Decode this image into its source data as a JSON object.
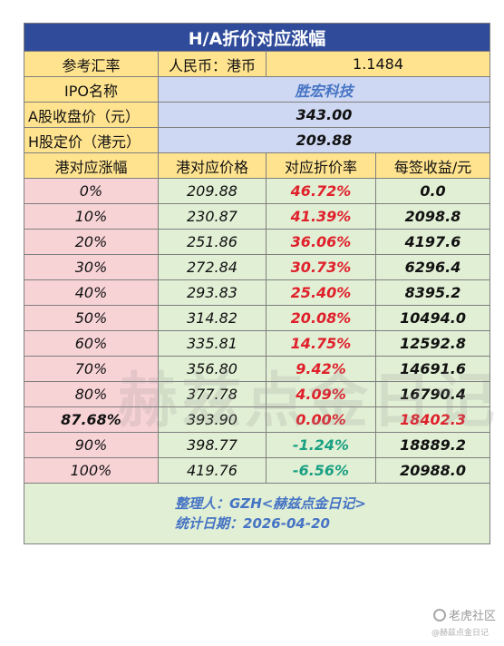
{
  "title": "H/A折价对应涨幅",
  "info": {
    "fx_label": "参考汇率",
    "fx_pair": "人民币：港币",
    "fx_value": "1.1484",
    "ipo_label": "IPO名称",
    "ipo_name": "胜宏科技",
    "a_close_label": "A股收盘价（元）",
    "a_close": "343.00",
    "h_price_label": "H股定价（港元）",
    "h_price": "209.88"
  },
  "headers": [
    "港对应涨幅",
    "港对应价格",
    "对应折价率",
    "每签收益/元"
  ],
  "rows": [
    {
      "rise": "0%",
      "price": "209.88",
      "discount": "46.72%",
      "profit": "0.0"
    },
    {
      "rise": "10%",
      "price": "230.87",
      "discount": "41.39%",
      "profit": "2098.8"
    },
    {
      "rise": "20%",
      "price": "251.86",
      "discount": "36.06%",
      "profit": "4197.6"
    },
    {
      "rise": "30%",
      "price": "272.84",
      "discount": "30.73%",
      "profit": "6296.4"
    },
    {
      "rise": "40%",
      "price": "293.83",
      "discount": "25.40%",
      "profit": "8395.2"
    },
    {
      "rise": "50%",
      "price": "314.82",
      "discount": "20.08%",
      "profit": "10494.0"
    },
    {
      "rise": "60%",
      "price": "335.81",
      "discount": "14.75%",
      "profit": "12592.8"
    },
    {
      "rise": "70%",
      "price": "356.80",
      "discount": "9.42%",
      "profit": "14691.6"
    },
    {
      "rise": "80%",
      "price": "377.78",
      "discount": "4.09%",
      "profit": "16790.4"
    },
    {
      "rise": "87.68%",
      "price": "393.90",
      "discount": "0.00%",
      "profit": "18402.3"
    },
    {
      "rise": "90%",
      "price": "398.77",
      "discount": "-1.24%",
      "profit": "18889.2"
    },
    {
      "rise": "100%",
      "price": "419.76",
      "discount": "-6.56%",
      "profit": "20988.0"
    }
  ],
  "footer": {
    "compiler": "整理人：GZH<赫兹点金日记>",
    "date": "统计日期：2026-04-20"
  },
  "watermark": {
    "center": "赫兹点金日记",
    "logo": "老虎社区",
    "sub": "@赫兹点金日记"
  },
  "colors": {
    "title_bg": "#2f4b9a",
    "header_bg": "#ffe38f",
    "info_bg": "#cfd8f2",
    "first_col_bg": "#f8d3d6",
    "cell_bg": "#e1efd5",
    "positive_discount": "#e0202a",
    "negative_discount": "#1aa083",
    "accent_blue": "#4674c4"
  }
}
